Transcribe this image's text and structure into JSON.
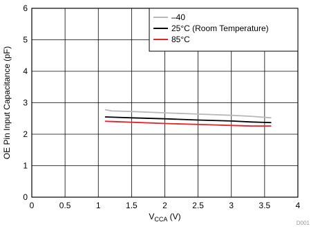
{
  "chart_data": {
    "type": "line",
    "title": "",
    "xlabel_main": "V",
    "xlabel_sub": "CCA",
    "xlabel_unit": " (V)",
    "ylabel": "OE Pin Input Capacitance (pF)",
    "xlim": [
      0,
      4
    ],
    "ylim": [
      0,
      6
    ],
    "xticks": [
      0,
      0.5,
      1,
      1.5,
      2,
      2.5,
      3,
      3.5,
      4
    ],
    "yticks": [
      0,
      1,
      2,
      3,
      4,
      5,
      6
    ],
    "xtick_labels": [
      "0",
      "0.5",
      "1",
      "1.5",
      "2",
      "2.5",
      "3",
      "3.5",
      "4"
    ],
    "ytick_labels": [
      "0",
      "1",
      "2",
      "3",
      "4",
      "5",
      "6"
    ],
    "grid": true,
    "legend_position": "top-right",
    "series": [
      {
        "name": "–40",
        "color": "#b8b8b8",
        "x": [
          1.1,
          1.2,
          1.5,
          2.0,
          2.5,
          3.0,
          3.3,
          3.6
        ],
        "y": [
          2.78,
          2.74,
          2.72,
          2.68,
          2.64,
          2.6,
          2.57,
          2.52
        ]
      },
      {
        "name": "25°C (Room Temperature)",
        "color": "#000000",
        "x": [
          1.1,
          1.5,
          2.0,
          2.5,
          3.0,
          3.3,
          3.6
        ],
        "y": [
          2.55,
          2.52,
          2.49,
          2.45,
          2.42,
          2.39,
          2.37
        ]
      },
      {
        "name": "85°C",
        "color": "#e8202a",
        "x": [
          1.1,
          1.5,
          2.0,
          2.5,
          3.0,
          3.3,
          3.6
        ],
        "y": [
          2.41,
          2.38,
          2.34,
          2.31,
          2.28,
          2.26,
          2.26
        ]
      }
    ],
    "watermark": "D001"
  }
}
